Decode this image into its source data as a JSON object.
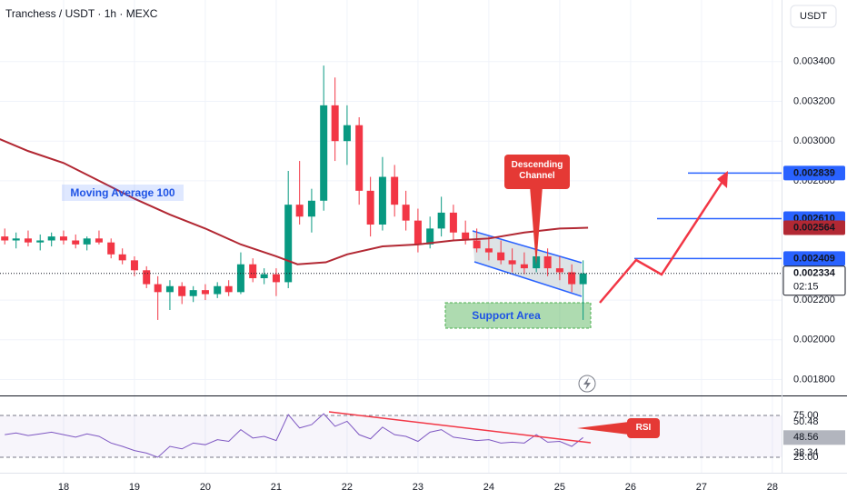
{
  "chart_data": {
    "type": "candlestick",
    "title": "Tranchess / USDT · 1h · MEXC",
    "currency_button": "USDT",
    "x": [
      17.17,
      17.33,
      17.5,
      17.67,
      17.83,
      18,
      18.17,
      18.33,
      18.5,
      18.67,
      18.83,
      19,
      19.17,
      19.33,
      19.5,
      19.67,
      19.83,
      20,
      20.17,
      20.33,
      20.5,
      20.67,
      20.83,
      21,
      21.17,
      21.33,
      21.5,
      21.67,
      21.83,
      22,
      22.17,
      22.33,
      22.5,
      22.67,
      22.83,
      23,
      23.17,
      23.33,
      23.5,
      23.67,
      23.83,
      24,
      24.17,
      24.33,
      24.5,
      24.67,
      24.83,
      25,
      25.17,
      25.33
    ],
    "open": [
      0.00252,
      0.0025,
      0.00251,
      0.00249,
      0.0025,
      0.00252,
      0.0025,
      0.00248,
      0.00251,
      0.00249,
      0.00243,
      0.0024,
      0.00235,
      0.00228,
      0.00224,
      0.00227,
      0.00222,
      0.00225,
      0.00223,
      0.00227,
      0.00224,
      0.00238,
      0.00231,
      0.00233,
      0.00229,
      0.00268,
      0.00262,
      0.0027,
      0.00318,
      0.003,
      0.00308,
      0.00275,
      0.00258,
      0.00282,
      0.00268,
      0.0026,
      0.00248,
      0.00256,
      0.00264,
      0.00254,
      0.0025,
      0.00246,
      0.00244,
      0.0024,
      0.00238,
      0.00236,
      0.00242,
      0.00236,
      0.00234,
      0.00228
    ],
    "high": [
      0.00256,
      0.00254,
      0.00255,
      0.00253,
      0.00254,
      0.00255,
      0.00253,
      0.00252,
      0.00255,
      0.00251,
      0.00246,
      0.00242,
      0.00237,
      0.00232,
      0.0023,
      0.00229,
      0.00227,
      0.00228,
      0.00229,
      0.0023,
      0.00244,
      0.00241,
      0.00236,
      0.00236,
      0.00285,
      0.0029,
      0.00276,
      0.00338,
      0.00332,
      0.00318,
      0.00312,
      0.00282,
      0.00292,
      0.00288,
      0.00275,
      0.00266,
      0.00262,
      0.00272,
      0.00268,
      0.0026,
      0.00256,
      0.00252,
      0.0025,
      0.00246,
      0.00244,
      0.0026,
      0.00246,
      0.00242,
      0.00238,
      0.0024
    ],
    "low": [
      0.00248,
      0.00246,
      0.00247,
      0.00245,
      0.00247,
      0.00248,
      0.00246,
      0.00245,
      0.00248,
      0.00241,
      0.00238,
      0.00232,
      0.00226,
      0.0021,
      0.00215,
      0.00218,
      0.00219,
      0.0022,
      0.00221,
      0.00222,
      0.00223,
      0.00229,
      0.00228,
      0.00222,
      0.00226,
      0.00258,
      0.00254,
      0.00265,
      0.0029,
      0.00288,
      0.00268,
      0.00252,
      0.00255,
      0.00262,
      0.00255,
      0.00244,
      0.00246,
      0.00252,
      0.0025,
      0.00248,
      0.00244,
      0.0024,
      0.00238,
      0.00234,
      0.00233,
      0.00234,
      0.00232,
      0.0023,
      0.00224,
      0.0021
    ],
    "close": [
      0.0025,
      0.00251,
      0.00249,
      0.0025,
      0.00252,
      0.0025,
      0.00248,
      0.00251,
      0.00249,
      0.00243,
      0.0024,
      0.00235,
      0.00228,
      0.00224,
      0.00227,
      0.00222,
      0.00225,
      0.00223,
      0.00227,
      0.00224,
      0.00238,
      0.00231,
      0.00233,
      0.00229,
      0.00268,
      0.00262,
      0.0027,
      0.00318,
      0.003,
      0.00308,
      0.00275,
      0.00258,
      0.00282,
      0.00268,
      0.0026,
      0.00248,
      0.00256,
      0.00264,
      0.00254,
      0.0025,
      0.00246,
      0.00244,
      0.0024,
      0.00238,
      0.00236,
      0.00242,
      0.00236,
      0.00234,
      0.00228,
      0.002334
    ],
    "up_color": "#089981",
    "down_color": "#f23645",
    "xlim": [
      17.103,
      28.13
    ],
    "xticks": [
      18,
      19,
      20,
      21,
      22,
      23,
      24,
      25,
      26,
      27,
      28
    ],
    "ylim": [
      0.00172,
      0.00371
    ],
    "yticks": [
      {
        "value": 0.0034,
        "label": "0.003400"
      },
      {
        "value": 0.0032,
        "label": "0.003200"
      },
      {
        "value": 0.003,
        "label": "0.003000"
      },
      {
        "value": 0.0028,
        "label": "0.002800"
      },
      {
        "value": 0.0022,
        "label": "0.002200"
      },
      {
        "value": 0.002,
        "label": "0.002000"
      },
      {
        "value": 0.0018,
        "label": "0.001800"
      }
    ],
    "grid": true,
    "moving_average": {
      "name": "Moving Average 100",
      "color": "#b22833",
      "x": [
        17.1,
        17.5,
        18,
        18.5,
        19,
        19.5,
        20,
        20.5,
        21,
        21.3,
        21.7,
        22,
        22.5,
        23,
        23.5,
        24,
        24.5,
        25,
        25.4
      ],
      "values": [
        0.00301,
        0.00295,
        0.00289,
        0.0028,
        0.00271,
        0.00263,
        0.00256,
        0.00248,
        0.00242,
        0.00238,
        0.00239,
        0.00243,
        0.00247,
        0.00248,
        0.0025,
        0.00251,
        0.00254,
        0.00256,
        0.002564
      ]
    },
    "price_levels": [
      {
        "value": 0.002839,
        "label": "0.002839",
        "color": "#2962ff"
      },
      {
        "value": 0.00261,
        "label": "0.002610",
        "color": "#2962ff"
      },
      {
        "value": 0.002564,
        "label": "0.002564",
        "color": "#b22833"
      },
      {
        "value": 0.002409,
        "label": "0.002409",
        "color": "#2962ff"
      },
      {
        "value": 0.002334,
        "label": "0.002334",
        "color": "#131722"
      }
    ],
    "countdown": "02:15",
    "annotations": {
      "channel": "Descending Channel",
      "support": "Support Area",
      "rsi": "RSI"
    },
    "rsi": {
      "color": "#7e57c2",
      "values": [
        52,
        54,
        51,
        53,
        55,
        52,
        49,
        53,
        50,
        42,
        38,
        33,
        30,
        25,
        38,
        35,
        42,
        40,
        46,
        44,
        58,
        48,
        50,
        45,
        76,
        60,
        64,
        77,
        62,
        68,
        52,
        47,
        61,
        52,
        50,
        44,
        55,
        58,
        49,
        47,
        45,
        46,
        42,
        43,
        42,
        52,
        43,
        44,
        38,
        48.56
      ],
      "ylim": [
        6.5,
        97.8
      ],
      "yticks": [
        {
          "value": 75,
          "label": "75.00"
        },
        {
          "value": 25,
          "label": "25.00"
        }
      ],
      "level_labels": [
        50.48,
        48.56,
        38.34
      ]
    }
  }
}
